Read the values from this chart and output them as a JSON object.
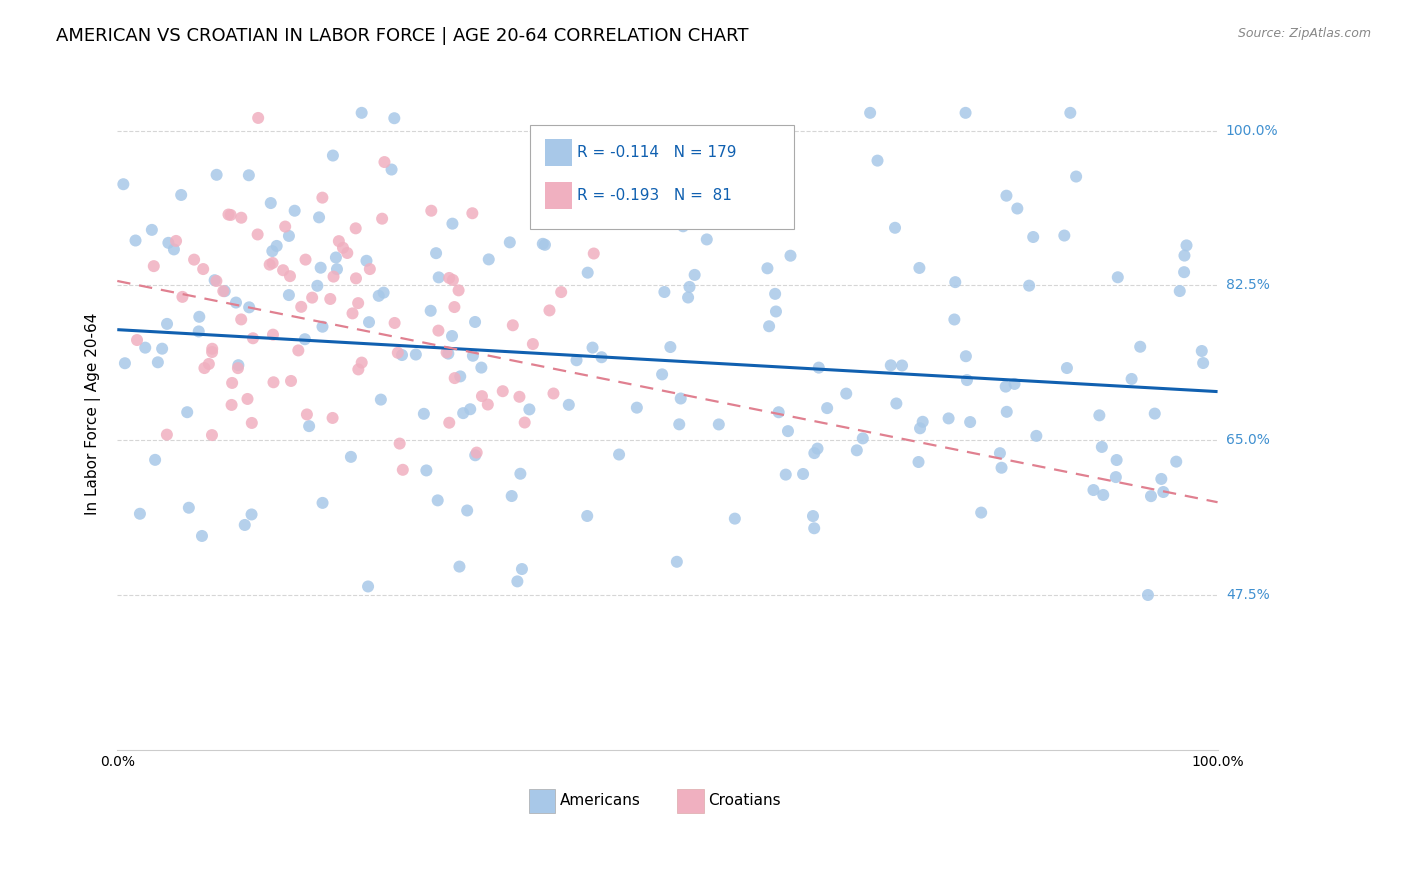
{
  "title": "AMERICAN VS CROATIAN IN LABOR FORCE | AGE 20-64 CORRELATION CHART",
  "source": "Source: ZipAtlas.com",
  "ylabel": "In Labor Force | Age 20-64",
  "xlim": [
    0.0,
    1.0
  ],
  "ylim": [
    0.3,
    1.06
  ],
  "yticks": [
    0.475,
    0.65,
    0.825,
    1.0
  ],
  "ytick_labels": [
    "47.5%",
    "65.0%",
    "82.5%",
    "100.0%"
  ],
  "xticks": [
    0.0,
    0.2,
    0.4,
    0.6,
    0.8,
    1.0
  ],
  "xtick_labels": [
    "0.0%",
    "",
    "",
    "",
    "",
    "100.0%"
  ],
  "american_color": "#a8c8e8",
  "croatian_color": "#f0b0c0",
  "american_line_color": "#1060b0",
  "croatian_line_color": "#e08090",
  "legend_text_color": "#1060b0",
  "right_label_color": "#4090d0",
  "R_american": -0.114,
  "N_american": 179,
  "R_croatian": -0.193,
  "N_croatian": 81,
  "am_line_y0": 0.775,
  "am_line_y1": 0.705,
  "cr_line_y0": 0.83,
  "cr_line_y1": 0.58,
  "background_color": "#ffffff",
  "grid_color": "#cccccc",
  "title_fontsize": 13,
  "axis_fontsize": 11,
  "tick_fontsize": 10
}
